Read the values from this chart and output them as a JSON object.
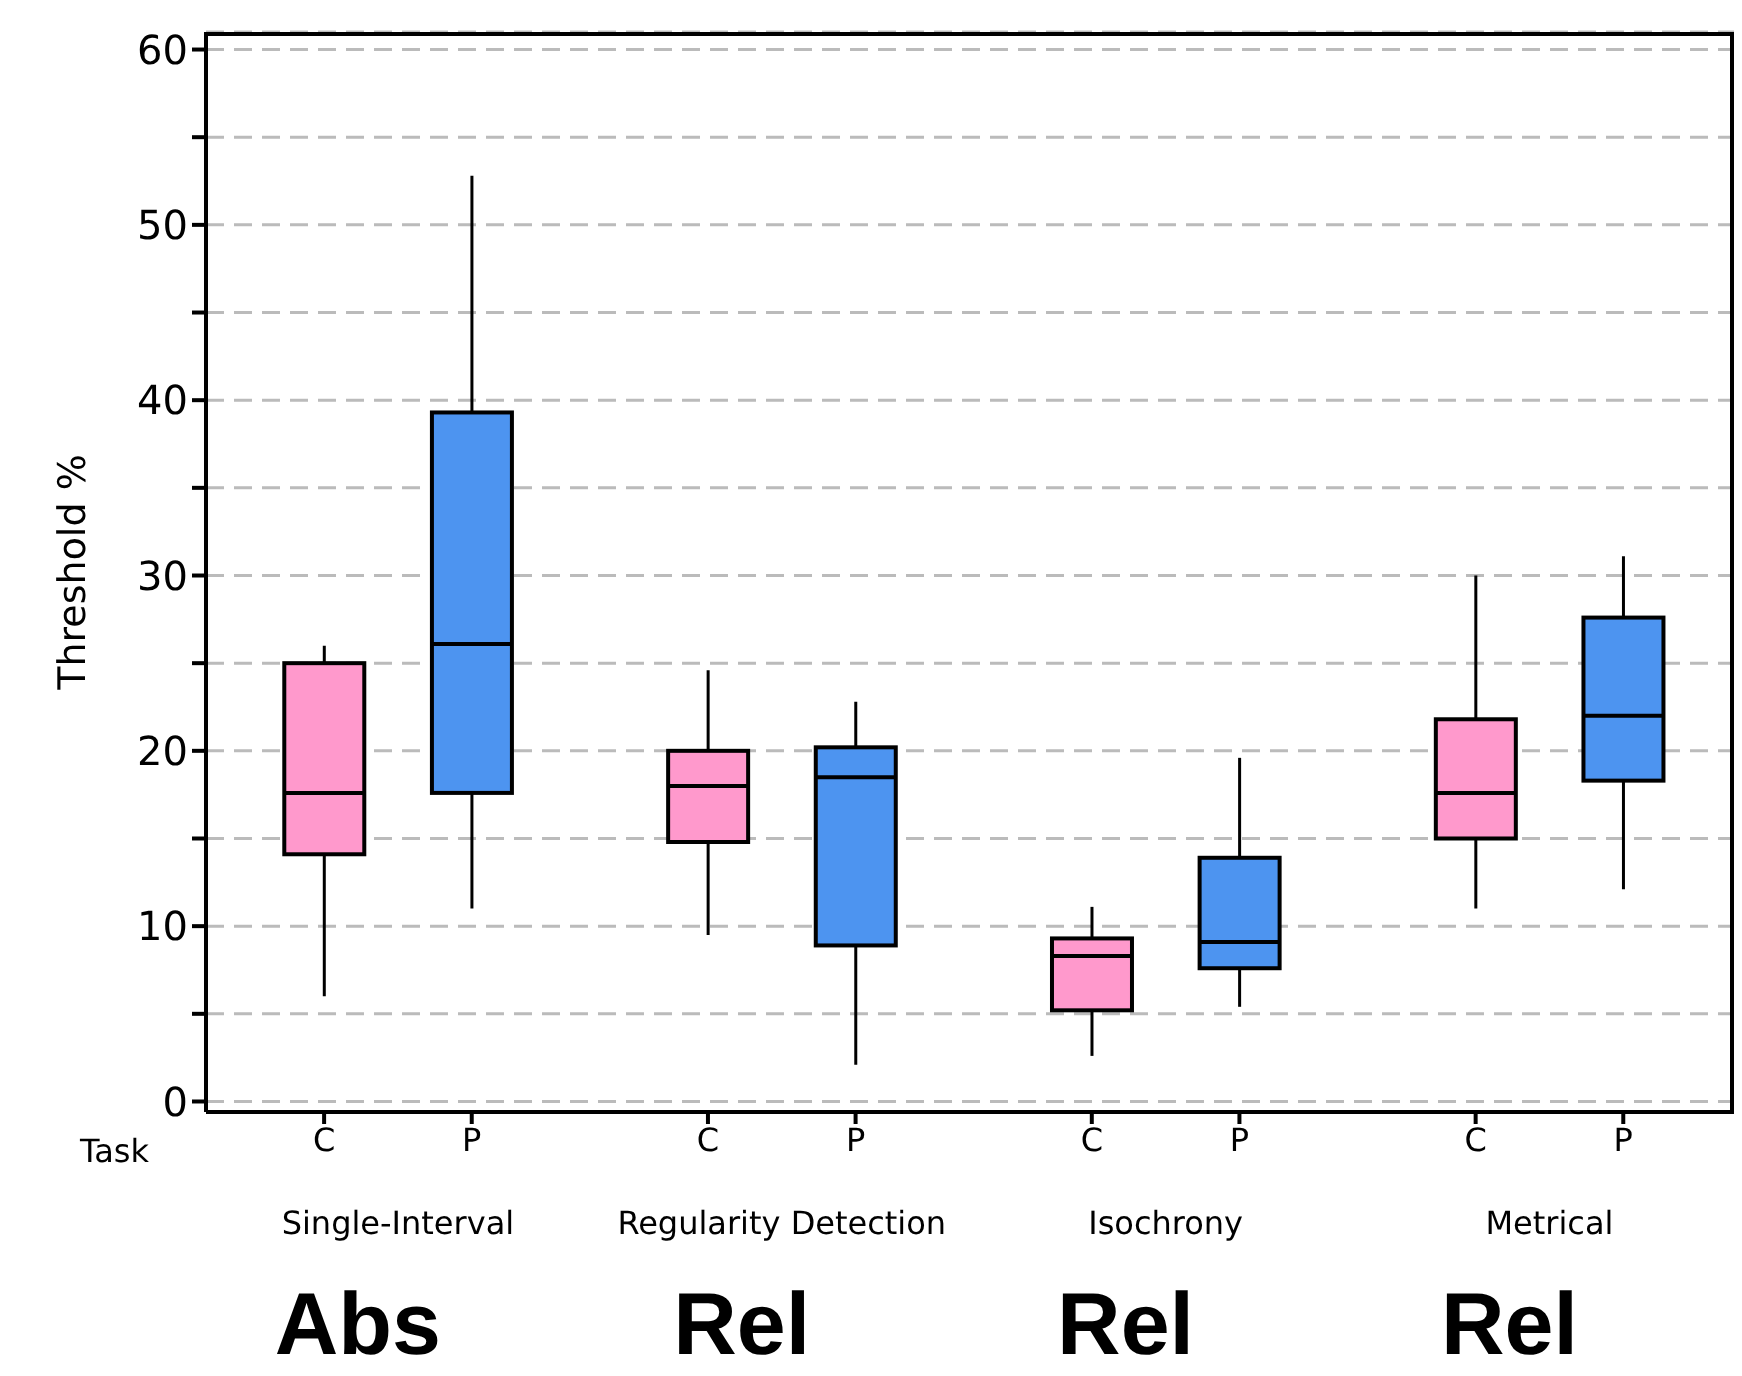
{
  "chart_data": {
    "type": "box",
    "ylabel": "Threshold %",
    "categories": [
      "C",
      "P",
      "C",
      "P",
      "C",
      "P",
      "C",
      "P"
    ],
    "colors": [
      "#ff99cc",
      "#4d94f0",
      "#ff99cc",
      "#4d94f0",
      "#ff99cc",
      "#4d94f0",
      "#ff99cc",
      "#4d94f0"
    ],
    "boxes": [
      {
        "low": 6,
        "q1": 14.1,
        "median": 17.6,
        "q3": 25,
        "high": 26
      },
      {
        "low": 11,
        "q1": 17.6,
        "median": 26.1,
        "q3": 39.3,
        "high": 52.8
      },
      {
        "low": 9.5,
        "q1": 14.8,
        "median": 18,
        "q3": 20,
        "high": 24.6
      },
      {
        "low": 2.1,
        "q1": 8.9,
        "median": 18.5,
        "q3": 20.2,
        "high": 22.8
      },
      {
        "low": 2.6,
        "q1": 5.2,
        "median": 8.3,
        "q3": 9.3,
        "high": 11.1
      },
      {
        "low": 5.4,
        "q1": 7.6,
        "median": 9.1,
        "q3": 13.9,
        "high": 19.6
      },
      {
        "low": 11,
        "q1": 15,
        "median": 17.6,
        "q3": 21.8,
        "high": 30
      },
      {
        "low": 12.1,
        "q1": 18.3,
        "median": 22,
        "q3": 27.6,
        "high": 31.1
      }
    ],
    "ylim": [
      -0.6,
      61
    ],
    "yticks": [
      0,
      {
        "value": 5,
        "label": null
      },
      10,
      {
        "value": 15,
        "label": null
      },
      20,
      {
        "value": 25,
        "label": null
      },
      30,
      {
        "value": 35,
        "label": null
      },
      40,
      {
        "value": 45,
        "label": null
      },
      50,
      {
        "value": 55,
        "label": null
      },
      60
    ],
    "grid": "y",
    "annotations": [
      "Task",
      "Single-Interval",
      "Regularity Detection",
      "Isochrony",
      "Metrical",
      "Abs",
      "Rel",
      "Rel",
      "Rel"
    ]
  }
}
